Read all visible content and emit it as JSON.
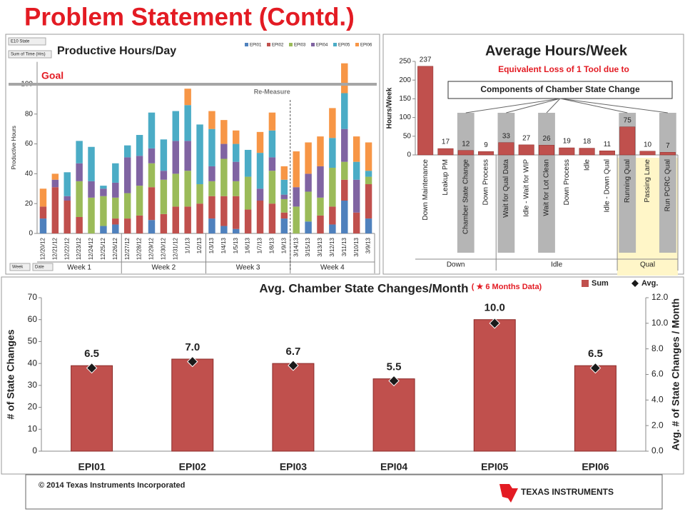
{
  "title": "Problem Statement (Contd.)",
  "footer": "© 2014 Texas Instruments Incorporated",
  "logo": "TEXAS INSTRUMENTS",
  "chart_data": [
    {
      "type": "bar",
      "stacked": true,
      "title": "Productive Hours/Day",
      "y_label": "Productive Hours",
      "buttons": [
        "E10 State",
        "Sum of Time (Hrs)",
        "Week",
        "Date"
      ],
      "goal": {
        "label": "Goal",
        "value": 100
      },
      "annotations": [
        "Re-Measure"
      ],
      "groups": [
        "Week 1",
        "Week 2",
        "Week 3",
        "Week 4"
      ],
      "categories": [
        "12/20/12",
        "12/21/12",
        "12/22/12",
        "12/23/12",
        "12/24/12",
        "12/25/12",
        "12/26/12",
        "12/27/12",
        "12/28/12",
        "12/29/12",
        "12/30/12",
        "12/31/12",
        "1/1/13",
        "1/2/13",
        "1/3/13",
        "1/4/13",
        "1/5/13",
        "1/6/13",
        "1/7/13",
        "1/8/13",
        "1/9/13",
        "3/14/13",
        "3/15/13",
        "3/13/13",
        "3/12/13",
        "3/11/13",
        "3/10/13",
        "3/9/13"
      ],
      "series": [
        {
          "name": "EPI01",
          "color": "#4f81bd",
          "values": [
            10,
            0,
            0,
            0,
            0,
            5,
            6,
            0,
            0,
            9,
            0,
            0,
            0,
            0,
            10,
            5,
            3,
            0,
            0,
            0,
            10,
            0,
            8,
            0,
            6,
            22,
            0,
            10
          ]
        },
        {
          "name": "EPI02",
          "color": "#c0504d",
          "values": [
            8,
            31,
            22,
            11,
            0,
            0,
            4,
            10,
            12,
            22,
            13,
            18,
            18,
            20,
            15,
            20,
            22,
            16,
            22,
            20,
            4,
            0,
            0,
            12,
            12,
            14,
            14,
            23
          ]
        },
        {
          "name": "EPI03",
          "color": "#9bbb59",
          "values": [
            0,
            0,
            0,
            24,
            24,
            20,
            14,
            17,
            20,
            16,
            23,
            22,
            24,
            13,
            10,
            25,
            10,
            22,
            0,
            22,
            9,
            18,
            20,
            12,
            26,
            12,
            0,
            5
          ]
        },
        {
          "name": "EPI04",
          "color": "#8064a2",
          "values": [
            0,
            5,
            3,
            12,
            11,
            5,
            10,
            24,
            20,
            10,
            6,
            22,
            20,
            0,
            10,
            10,
            13,
            0,
            8,
            9,
            3,
            13,
            12,
            21,
            0,
            22,
            22,
            0
          ]
        },
        {
          "name": "EPI05",
          "color": "#4bacc6",
          "values": [
            0,
            0,
            16,
            15,
            23,
            2,
            13,
            8,
            14,
            24,
            21,
            20,
            24,
            40,
            25,
            0,
            12,
            18,
            24,
            18,
            10,
            0,
            0,
            0,
            20,
            24,
            12,
            4
          ]
        },
        {
          "name": "EPI06",
          "color": "#f79646",
          "values": [
            12,
            4,
            0,
            0,
            0,
            0,
            0,
            0,
            0,
            0,
            0,
            0,
            11,
            0,
            12,
            16,
            9,
            0,
            14,
            12,
            9,
            24,
            21,
            20,
            20,
            20,
            17,
            19
          ]
        }
      ],
      "ylim": [
        0,
        115
      ],
      "yticks": [
        0,
        20,
        40,
        60,
        80,
        100
      ],
      "grid": false,
      "legend": "top"
    },
    {
      "type": "bar",
      "title": "Average Hours/Week",
      "y_label": "Hours/Week",
      "annotations": [
        "Equivalent Loss of 1 Tool due to",
        "Components of Chamber State Change"
      ],
      "groups": [
        "Down",
        "Idle",
        "Qual"
      ],
      "categories": [
        "Down Maintenance",
        "Leakup PM",
        "Chamber State Change",
        "Down Process",
        "Wait for Qual Data",
        "Idle - Wait for WIP",
        "Wait for Lot Clean",
        "Down Process",
        "Idle",
        "Idle - Down Qual",
        "Running Qual",
        "Passing Lane",
        "Run PCRC Qual"
      ],
      "values": [
        237,
        17,
        12,
        9,
        33,
        27,
        26,
        19,
        18,
        11,
        75,
        10,
        7
      ],
      "color": "#c0504d",
      "data_labels": true,
      "ylim": [
        0,
        250
      ],
      "yticks": [
        0,
        50,
        100,
        150,
        200,
        250
      ],
      "grid": false
    },
    {
      "type": "bar",
      "title": "Avg. Chamber State Changes/Month",
      "y_label": "# of State Changes",
      "y2_label": "Avg. # of State Changes / Month",
      "annotations": [
        "( ★ 6 Months Data)"
      ],
      "categories": [
        "EPI01",
        "EPI02",
        "EPI03",
        "EPI04",
        "EPI05",
        "EPI06"
      ],
      "series": [
        {
          "name": "Sum",
          "color": "#c0504d",
          "values": [
            39,
            42,
            40,
            33,
            60,
            39
          ]
        },
        {
          "name": "Avg.",
          "color": "#1a1a1a",
          "axis": "y2",
          "marker": "diamond",
          "values": [
            6.5,
            7.0,
            6.7,
            5.5,
            10.0,
            6.5
          ],
          "value_labels": [
            "6.5",
            "7.0",
            "6.7",
            "5.5",
            "10.0",
            "6.5"
          ]
        }
      ],
      "ylim": [
        0,
        70
      ],
      "yticks": [
        0,
        10,
        20,
        30,
        40,
        50,
        60,
        70
      ],
      "y2lim": [
        0,
        12
      ],
      "y2ticks": [
        {
          "value": 0,
          "label": "0.0"
        },
        {
          "value": 2,
          "label": "2.0"
        },
        {
          "value": 4,
          "label": "4.0"
        },
        {
          "value": 6,
          "label": "6.0"
        },
        {
          "value": 8,
          "label": "8.0"
        },
        {
          "value": 10,
          "label": "10.0"
        },
        {
          "value": 12,
          "label": "12.0"
        }
      ],
      "grid": false,
      "legend": "top-right"
    }
  ]
}
